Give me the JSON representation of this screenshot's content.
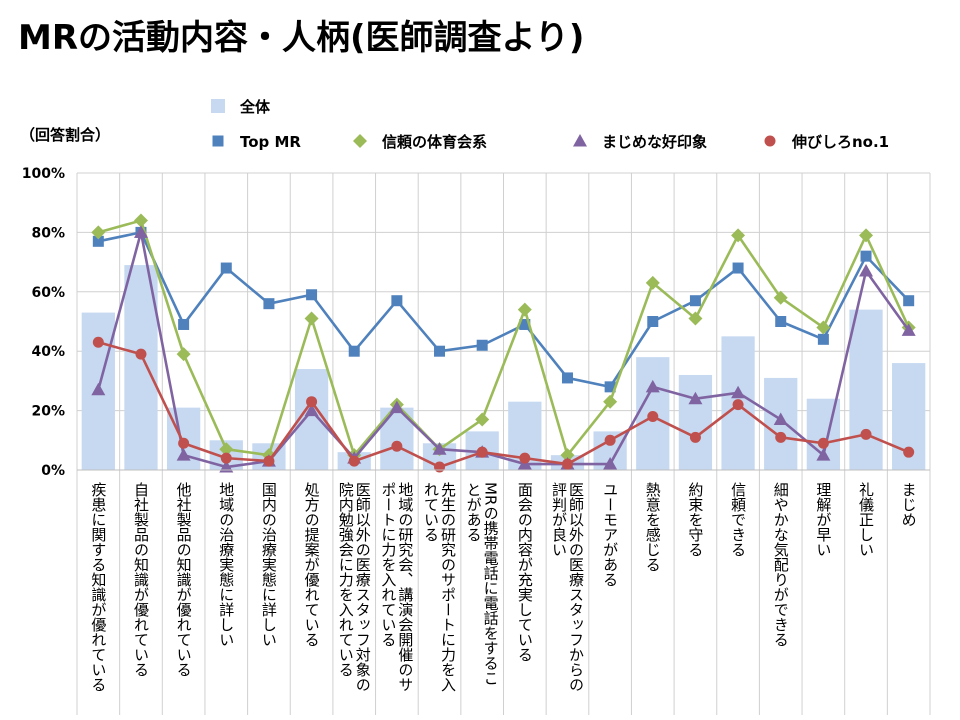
{
  "title": "MRの活動内容・人柄(医師調査より)",
  "chart_data": {
    "type": "bar+line",
    "y_unit_label": "（回答割合）",
    "ylim": [
      0,
      100
    ],
    "y_ticks": [
      "0%",
      "20%",
      "40%",
      "60%",
      "80%",
      "100%"
    ],
    "grid": true,
    "legend_position": "top",
    "categories": [
      "疾患に関する知識が優れている",
      "自社製品の知識が優れている",
      "他社製品の知識が優れている",
      "地域の治療実態に詳しい",
      "国内の治療実態に詳しい",
      "処方の提案が優れている",
      "医師以外の医療スタッフ対象の院内勉強会に力を入れている",
      "地域の研究会、講演会開催のサポートに力を入れている",
      "先生の研究のサポートに力を入れている",
      "MRの携帯電話に電話をすることがある",
      "面会の内容が充実している",
      "医師以外の医療スタッフからの評判が良い",
      "ユーモアがある",
      "熱意を感じる",
      "約束を守る",
      "信頼できる",
      "細やかな気配りができる",
      "理解が早い",
      "礼儀正しい",
      "まじめ"
    ],
    "series": [
      {
        "name": "全体",
        "type": "bar",
        "color": "#c6d9f1",
        "values": [
          53,
          69,
          21,
          10,
          9,
          34,
          6,
          21,
          9,
          13,
          23,
          5,
          13,
          38,
          32,
          45,
          31,
          24,
          54,
          36
        ]
      },
      {
        "name": "Top MR",
        "type": "line",
        "marker": "square",
        "color": "#4f81bd",
        "values": [
          77,
          80,
          49,
          68,
          56,
          59,
          40,
          57,
          40,
          42,
          49,
          31,
          28,
          50,
          57,
          68,
          50,
          44,
          72,
          57
        ]
      },
      {
        "name": "信頼の体育会系",
        "type": "line",
        "marker": "diamond",
        "color": "#9bbb59",
        "values": [
          80,
          84,
          39,
          7,
          5,
          51,
          5,
          22,
          7,
          17,
          54,
          5,
          23,
          63,
          51,
          79,
          58,
          48,
          79,
          48
        ]
      },
      {
        "name": "まじめな好印象",
        "type": "line",
        "marker": "triangle",
        "color": "#8064a2",
        "values": [
          27,
          80,
          5,
          1,
          3,
          20,
          4,
          21,
          7,
          6,
          2,
          2,
          2,
          28,
          24,
          26,
          17,
          5,
          67,
          47
        ]
      },
      {
        "name": "伸びしろno.1",
        "type": "line",
        "marker": "circle",
        "color": "#c0504d",
        "values": [
          43,
          39,
          9,
          4,
          3,
          23,
          3,
          8,
          1,
          6,
          4,
          2,
          10,
          18,
          11,
          22,
          11,
          9,
          12,
          6
        ]
      }
    ]
  }
}
